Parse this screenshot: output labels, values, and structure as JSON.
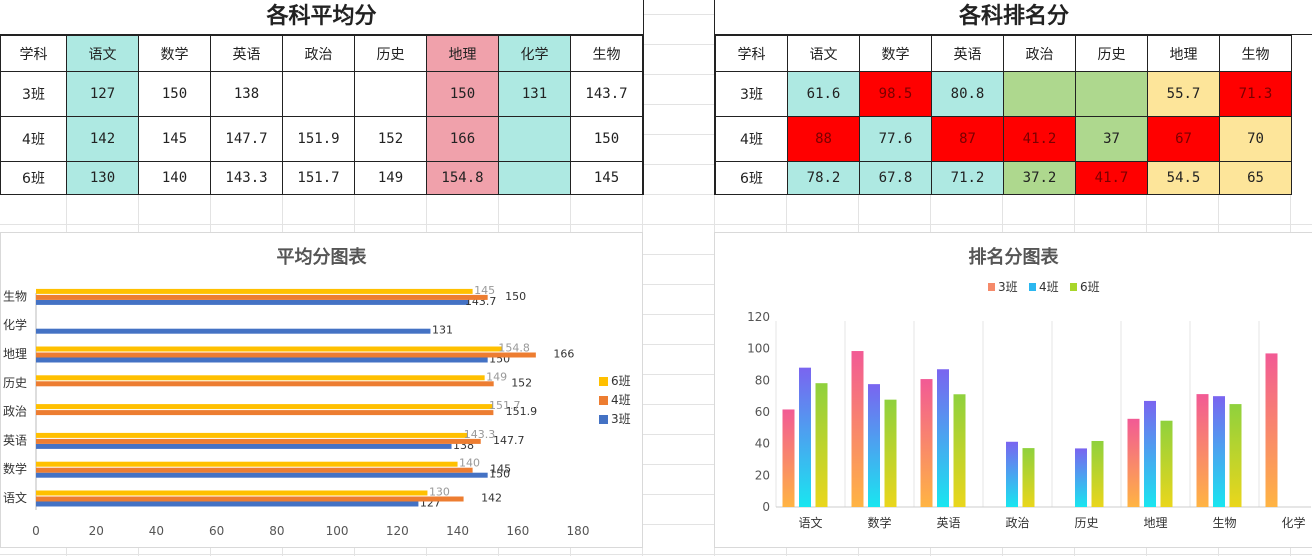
{
  "avg_table": {
    "title": "各科平均分",
    "headers": [
      "学科",
      "语文",
      "数学",
      "英语",
      "政治",
      "历史",
      "地理",
      "化学",
      "生物"
    ],
    "rows": [
      {
        "label": "3班",
        "cells": [
          "127",
          "150",
          "138",
          "",
          "",
          "150",
          "131",
          "143.7"
        ]
      },
      {
        "label": "4班",
        "cells": [
          "142",
          "145",
          "147.7",
          "151.9",
          "152",
          "166",
          "",
          "150"
        ]
      },
      {
        "label": "6班",
        "cells": [
          "130",
          "140",
          "143.3",
          "151.7",
          "149",
          "154.8",
          "",
          "145"
        ]
      }
    ]
  },
  "rank_table": {
    "title": "各科排名分",
    "headers": [
      "学科",
      "语文",
      "数学",
      "英语",
      "政治",
      "历史",
      "地理",
      "生物"
    ],
    "rows": [
      {
        "label": "3班",
        "cells": [
          "61.6",
          "98.5",
          "80.8",
          "",
          "",
          "55.7",
          "71.3"
        ]
      },
      {
        "label": "4班",
        "cells": [
          "88",
          "77.6",
          "87",
          "41.2",
          "37",
          "67",
          "70"
        ]
      },
      {
        "label": "6班",
        "cells": [
          "78.2",
          "67.8",
          "71.2",
          "37.2",
          "41.7",
          "54.5",
          "65"
        ]
      }
    ]
  },
  "colors": {
    "teal": "#aee9e2",
    "pink": "#f0a1ab",
    "red": "#ff0000",
    "green": "#aed88e",
    "yellow": "#fde59a",
    "series_3": "#4472c4",
    "series_4": "#ed7d31",
    "series_6": "#ffc000"
  },
  "chart_data": [
    {
      "type": "bar",
      "orientation": "horizontal",
      "title": "平均分图表",
      "categories": [
        "语文",
        "数学",
        "英语",
        "政治",
        "历史",
        "地理",
        "化学",
        "生物"
      ],
      "series": [
        {
          "name": "3班",
          "values": [
            127,
            150,
            138,
            null,
            null,
            150,
            131,
            143.7
          ]
        },
        {
          "name": "4班",
          "values": [
            142,
            145,
            147.7,
            151.9,
            152,
            166,
            null,
            150
          ]
        },
        {
          "name": "6班",
          "values": [
            130,
            140,
            143.3,
            151.7,
            149,
            154.8,
            null,
            145
          ]
        }
      ],
      "xlim": [
        0,
        180
      ],
      "xticks": [
        0,
        20,
        40,
        60,
        80,
        100,
        120,
        140,
        160,
        180
      ],
      "legend": "right",
      "legend_order": [
        "6班",
        "4班",
        "3班"
      ]
    },
    {
      "type": "bar",
      "title": "排名分图表",
      "categories": [
        "语文",
        "数学",
        "英语",
        "政治",
        "历史",
        "地理",
        "生物",
        "化学"
      ],
      "series": [
        {
          "name": "3班",
          "values": [
            61.6,
            98.5,
            80.8,
            null,
            null,
            55.7,
            71.3,
            97
          ]
        },
        {
          "name": "4班",
          "values": [
            88,
            77.6,
            87,
            41.2,
            37,
            67,
            70,
            null
          ]
        },
        {
          "name": "6班",
          "values": [
            78.2,
            67.8,
            71.2,
            37.2,
            41.7,
            54.5,
            65,
            null
          ]
        }
      ],
      "ylim": [
        0,
        120
      ],
      "yticks": [
        0,
        20,
        40,
        60,
        80,
        100,
        120
      ],
      "legend": "top",
      "grid": true
    }
  ]
}
